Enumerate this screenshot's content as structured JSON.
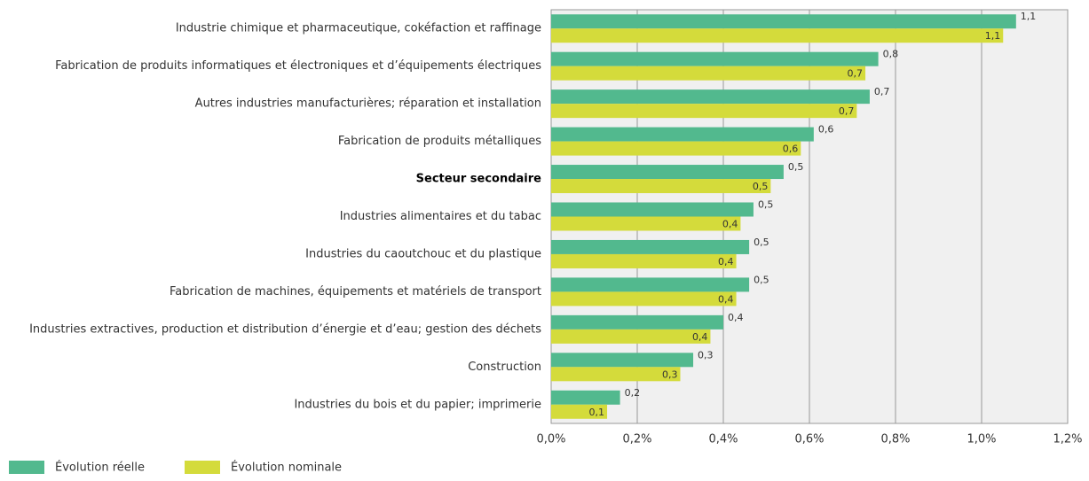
{
  "chart_data": {
    "type": "hbar",
    "categories": [
      "Industrie chimique et pharmaceutique, cokéfaction et raffinage",
      "Fabrication de produits informatiques et électroniques et d’équipements électriques",
      "Autres industries manufacturières; réparation et installation",
      "Fabrication de produits métalliques",
      "Secteur secondaire",
      "Industries alimentaires et du tabac",
      "Industries du caoutchouc et du plastique",
      "Fabrication de machines, équipements et matériels de transport",
      "Industries extractives, production et distribution d’énergie et d’eau; gestion des déchets",
      "Construction",
      "Industries du bois et du papier; imprimerie"
    ],
    "bold_category_index": 4,
    "series": [
      {
        "name": "Évolution réelle",
        "color": "#52b98e",
        "values": [
          1.08,
          0.76,
          0.74,
          0.61,
          0.54,
          0.47,
          0.46,
          0.46,
          0.4,
          0.33,
          0.16
        ],
        "value_labels": [
          "1,1",
          "0,8",
          "0,7",
          "0,6",
          "0,5",
          "0,5",
          "0,5",
          "0,5",
          "0,4",
          "0,3",
          "0,2"
        ]
      },
      {
        "name": "Évolution nominale",
        "color": "#d4db3b",
        "values": [
          1.05,
          0.73,
          0.71,
          0.58,
          0.51,
          0.44,
          0.43,
          0.43,
          0.37,
          0.3,
          0.13
        ],
        "value_labels": [
          "1,1",
          "0,7",
          "0,7",
          "0,6",
          "0,5",
          "0,4",
          "0,4",
          "0,4",
          "0,4",
          "0,3",
          "0,1"
        ]
      }
    ],
    "xlim": [
      0,
      1.2
    ],
    "xticks": [
      {
        "value": 0,
        "label": "0,0%"
      },
      {
        "value": 0.2,
        "label": "0,2%"
      },
      {
        "value": 0.4,
        "label": "0,4%"
      },
      {
        "value": 0.6,
        "label": "0,6%"
      },
      {
        "value": 0.8,
        "label": "0,8%"
      },
      {
        "value": 1.0,
        "label": "1,0%"
      },
      {
        "value": 1.2,
        "label": "1,2%"
      }
    ],
    "grid": true,
    "legend": "bottom-left"
  }
}
